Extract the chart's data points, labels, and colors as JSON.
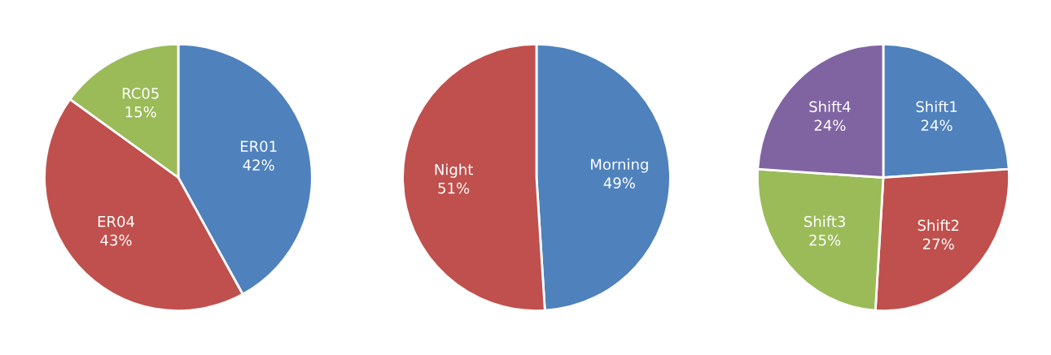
{
  "chart_data": [
    {
      "type": "pie",
      "categories": [
        "ER01",
        "ER04",
        "RC05"
      ],
      "values": [
        42,
        43,
        15
      ],
      "colors": [
        "#4f81bd",
        "#c0504d",
        "#9bbb59"
      ],
      "value_labels": [
        "42%",
        "43%",
        "15%"
      ]
    },
    {
      "type": "pie",
      "categories": [
        "Morning",
        "Night"
      ],
      "values": [
        49,
        51
      ],
      "colors": [
        "#4f81bd",
        "#c0504d"
      ],
      "value_labels": [
        "49%",
        "51%"
      ]
    },
    {
      "type": "pie",
      "categories": [
        "Shift1",
        "Shift2",
        "Shift3",
        "Shift4"
      ],
      "values": [
        24,
        27,
        25,
        24
      ],
      "colors": [
        "#4f81bd",
        "#c0504d",
        "#9bbb59",
        "#8064a2"
      ],
      "value_labels": [
        "24%",
        "27%",
        "25%",
        "24%"
      ]
    }
  ]
}
